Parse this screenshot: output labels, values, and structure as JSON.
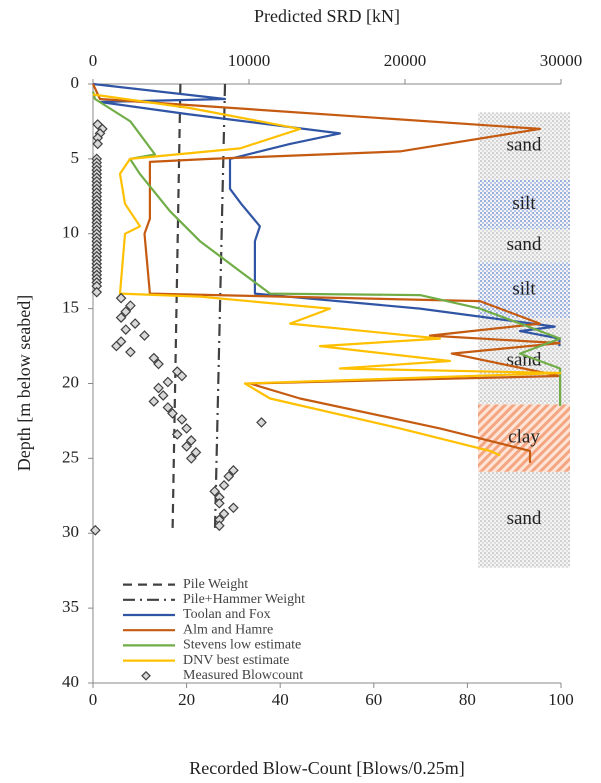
{
  "chart_data": {
    "type": "line",
    "x2_label": "Predicted SRD [kN]",
    "x_label": "Recorded Blow-Count [Blows/0.25m]",
    "y_label": "Depth [m below seabed]",
    "xlim": [
      0,
      100
    ],
    "xticks": [
      0,
      20,
      40,
      60,
      80,
      100
    ],
    "x2lim": [
      0,
      30000
    ],
    "x2ticks": [
      0,
      10000,
      20000,
      30000
    ],
    "ylim": [
      0,
      40
    ],
    "yticks": [
      0,
      5,
      10,
      15,
      20,
      25,
      30,
      35,
      40
    ],
    "y_inverted": true,
    "legend": "lower left",
    "series": [
      {
        "name": "Pile Weight",
        "color": "#404040",
        "dash": "9,6",
        "axis": "x2",
        "x": [
          5600,
          5100
        ],
        "y": [
          0,
          29.7
        ]
      },
      {
        "name": "Pile+Hammer Weight",
        "color": "#404040",
        "dash": "12,5,2,5",
        "axis": "x2",
        "x": [
          8460,
          7820
        ],
        "y": [
          0,
          29.7
        ]
      },
      {
        "name": "Toolan and Fox",
        "color": "#2f55a4",
        "axis": "x2",
        "x": [
          0,
          8460,
          450,
          6000,
          15830,
          12630,
          8780,
          8780,
          9500,
          10700,
          10380,
          10380,
          20960,
          29600,
          27370,
          29900,
          29900
        ],
        "y": [
          0,
          1,
          1.2,
          2,
          3.3,
          4,
          5,
          7,
          8,
          9.5,
          10.5,
          14,
          15,
          16.2,
          16.5,
          17,
          17.5
        ]
      },
      {
        "name": "Alm and Hamre",
        "color": "#c55a11",
        "axis": "x2",
        "x": [
          0,
          450,
          28650,
          19680,
          7500,
          3650,
          3650,
          3300,
          3650,
          24800,
          28650,
          21600,
          29900,
          23000,
          29900,
          10060,
          13270,
          22240,
          28010,
          28010
        ],
        "y": [
          0,
          1,
          3,
          4.5,
          5,
          5.2,
          9,
          10,
          14,
          14.5,
          16,
          16.8,
          17.3,
          18,
          19.5,
          20,
          21,
          23,
          24.5,
          25.3
        ]
      },
      {
        "name": "Stevens low estimate",
        "color": "#70ad47",
        "axis": "x2",
        "x": [
          0,
          130,
          2400,
          3970,
          2370,
          3000,
          4940,
          6860,
          9420,
          11350,
          20960,
          24800,
          29940,
          27370,
          29940,
          29940
        ],
        "y": [
          0.5,
          1,
          2.5,
          4.7,
          5,
          6,
          8.5,
          10.5,
          12.5,
          14,
          14.1,
          15,
          17,
          18,
          19,
          21.5
        ]
      },
      {
        "name": "DNV best estimate",
        "color": "#ffc000",
        "axis": "x2",
        "x": [
          0,
          6200,
          13270,
          9420,
          2370,
          1730,
          2050,
          3010,
          2050,
          1730,
          6860,
          15190,
          12630,
          22240,
          14550,
          22880,
          15830,
          29940,
          9740,
          11350,
          19680,
          25450,
          26100
        ],
        "y": [
          0.7,
          1.6,
          3,
          4.3,
          5,
          6,
          8,
          9.5,
          10,
          14,
          14.2,
          15,
          16,
          17,
          17.5,
          18.5,
          19,
          19.3,
          20,
          21,
          23,
          24.5,
          24.8
        ]
      },
      {
        "name": "Measured Blowcount",
        "type": "scatter",
        "color": "#404040",
        "fill": "#d9d9d9",
        "x": [
          1,
          2,
          1.5,
          1,
          1,
          0.8,
          0.8,
          0.8,
          0.8,
          0.8,
          0.8,
          0.8,
          0.8,
          0.8,
          0.8,
          0.8,
          0.8,
          0.8,
          0.8,
          0.8,
          0.8,
          0.8,
          0.8,
          0.8,
          0.8,
          0.8,
          0.8,
          0.8,
          0.8,
          0.8,
          0.8,
          0.8,
          0.8,
          0.8,
          0.8,
          0.8,
          0.8,
          0.8,
          0.8,
          0.8,
          0.8,
          6,
          8,
          7,
          6,
          9,
          7,
          11,
          6,
          5,
          8,
          13,
          14,
          18,
          19,
          16,
          14,
          15,
          13,
          16,
          17,
          19,
          36,
          20,
          18,
          21,
          20,
          22,
          21,
          30,
          29,
          28,
          26,
          27,
          27,
          30,
          28,
          27,
          27,
          0.5
        ],
        "y": [
          2.7,
          3,
          3.3,
          3.6,
          4,
          5,
          5.25,
          5.5,
          5.75,
          6,
          6.25,
          6.5,
          6.75,
          7,
          7.25,
          7.5,
          7.75,
          8,
          8.25,
          8.5,
          8.75,
          9,
          9.25,
          9.5,
          9.75,
          10,
          10.25,
          10.5,
          10.75,
          11,
          11.25,
          11.5,
          11.75,
          12,
          12.25,
          12.5,
          12.75,
          13,
          13.25,
          13.5,
          13.9,
          14.3,
          14.8,
          15.2,
          15.6,
          16,
          16.4,
          16.8,
          17.2,
          17.5,
          17.9,
          18.3,
          18.7,
          19.2,
          19.5,
          19.9,
          20.3,
          20.8,
          21.2,
          21.6,
          22,
          22.4,
          22.6,
          23,
          23.4,
          23.8,
          24.2,
          24.6,
          25,
          25.8,
          26.2,
          26.8,
          27.2,
          27.6,
          28,
          28.3,
          28.7,
          29.1,
          29.5,
          29.8
        ]
      }
    ],
    "soil_layers": [
      {
        "label": "sand",
        "top": 1.9,
        "bottom": 6.4,
        "color": "#b8b8b8"
      },
      {
        "label": "silt",
        "top": 6.4,
        "bottom": 9.7,
        "color": "#5b7fd1"
      },
      {
        "label": "sand",
        "top": 9.7,
        "bottom": 11.9,
        "color": "#b8b8b8"
      },
      {
        "label": "silt",
        "top": 11.9,
        "bottom": 15.6,
        "color": "#5b7fd1"
      },
      {
        "label": "sand",
        "top": 15.6,
        "bottom": 21.4,
        "color": "#b8b8b8"
      },
      {
        "label": "clay",
        "top": 21.4,
        "bottom": 25.9,
        "color": "#f4a582",
        "hatch": true
      },
      {
        "label": "sand",
        "top": 25.9,
        "bottom": 32.3,
        "color": "#b8b8b8"
      }
    ]
  }
}
